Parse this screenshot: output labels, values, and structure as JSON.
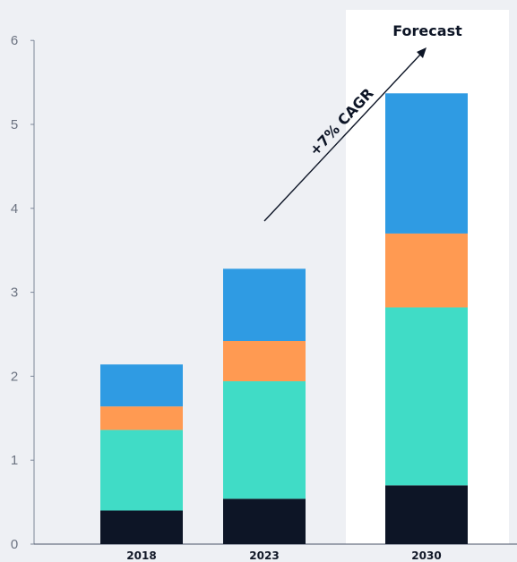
{
  "chart_data": {
    "type": "bar",
    "stacked": true,
    "categories": [
      "2018",
      "2023",
      "2030"
    ],
    "series": [
      {
        "values": [
          0.4,
          0.54,
          0.7
        ],
        "color": "#0d1526"
      },
      {
        "values": [
          0.96,
          1.4,
          2.12
        ],
        "color": "#40dcc6"
      },
      {
        "values": [
          0.28,
          0.48,
          0.88
        ],
        "color": "#ff9a52"
      },
      {
        "values": [
          0.5,
          0.86,
          1.67
        ],
        "color": "#2f9be3"
      }
    ],
    "ylim": [
      0,
      6
    ],
    "yticks": [
      "0",
      "1",
      "2",
      "3",
      "4",
      "5",
      "6"
    ],
    "grid": false,
    "highlight_region": {
      "category": "2030",
      "label": "Forecast",
      "color": "#ffffff"
    },
    "annotation": {
      "text": "+7% CAGR",
      "from_category": "2023",
      "to_category": "2030",
      "style": "arrow"
    }
  }
}
